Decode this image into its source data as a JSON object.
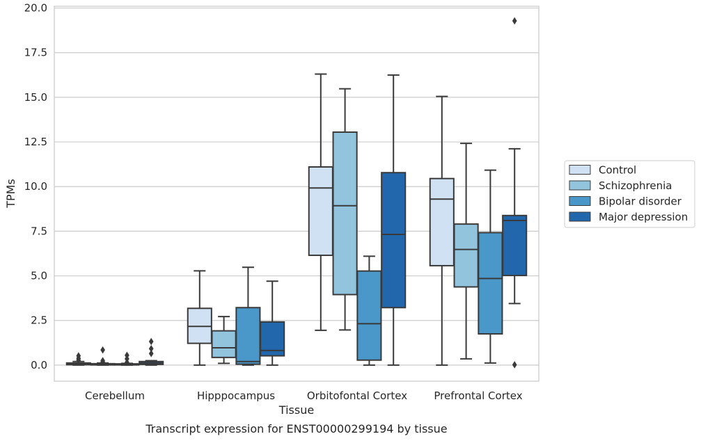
{
  "chart_data": {
    "type": "box",
    "title": "",
    "caption": "Transcript expression for ENST00000299194 by tissue",
    "xlabel": "Tissue",
    "ylabel": "TPMs",
    "ylim": [
      -0.9,
      20.1
    ],
    "yticks": [
      "0.0",
      "2.5",
      "5.0",
      "7.5",
      "10.0",
      "12.5",
      "15.0",
      "17.5",
      "20.0"
    ],
    "ytick_values": [
      0,
      2.5,
      5,
      7.5,
      10,
      12.5,
      15,
      17.5,
      20
    ],
    "grid": true,
    "legend_position": "right",
    "categories": [
      "Cerebellum",
      "Hipppocampus",
      "Orbitofontal Cortex",
      "Prefrontal Cortex"
    ],
    "series": [
      {
        "name": "Control",
        "color": "#cfe1f2",
        "boxes": [
          {
            "whislo": 0.0,
            "q1": 0.02,
            "med": 0.06,
            "q3": 0.12,
            "whishi": 0.2,
            "fliers": [
              0.28,
              0.38,
              0.52
            ]
          },
          {
            "whislo": 0.0,
            "q1": 1.22,
            "med": 2.17,
            "q3": 3.18,
            "whishi": 5.28,
            "fliers": []
          },
          {
            "whislo": 1.95,
            "q1": 6.15,
            "med": 9.92,
            "q3": 11.1,
            "whishi": 16.3,
            "fliers": []
          },
          {
            "whislo": 0.0,
            "q1": 5.57,
            "med": 9.3,
            "q3": 10.45,
            "whishi": 15.05,
            "fliers": []
          }
        ]
      },
      {
        "name": "Schizophrenia",
        "color": "#93c4de",
        "boxes": [
          {
            "whislo": 0.0,
            "q1": 0.01,
            "med": 0.04,
            "q3": 0.08,
            "whishi": 0.12,
            "fliers": [
              0.18,
              0.25,
              0.85
            ]
          },
          {
            "whislo": 0.1,
            "q1": 0.43,
            "med": 0.97,
            "q3": 1.92,
            "whishi": 2.72,
            "fliers": []
          },
          {
            "whislo": 1.97,
            "q1": 3.95,
            "med": 8.93,
            "q3": 13.05,
            "whishi": 15.48,
            "fliers": []
          },
          {
            "whislo": 0.35,
            "q1": 4.38,
            "med": 6.48,
            "q3": 7.9,
            "whishi": 12.42,
            "fliers": []
          }
        ]
      },
      {
        "name": "Bipolar disorder",
        "color": "#4a98c9",
        "boxes": [
          {
            "whislo": 0.0,
            "q1": 0.01,
            "med": 0.03,
            "q3": 0.07,
            "whishi": 0.1,
            "fliers": [
              0.15,
              0.35,
              0.55
            ]
          },
          {
            "whislo": 0.0,
            "q1": 0.05,
            "med": 0.2,
            "q3": 3.22,
            "whishi": 5.48,
            "fliers": []
          },
          {
            "whislo": 0.0,
            "q1": 0.28,
            "med": 2.32,
            "q3": 5.27,
            "whishi": 6.1,
            "fliers": []
          },
          {
            "whislo": 0.12,
            "q1": 1.75,
            "med": 4.85,
            "q3": 7.42,
            "whishi": 10.92,
            "fliers": []
          }
        ]
      },
      {
        "name": "Major depression",
        "color": "#2266ac",
        "boxes": [
          {
            "whislo": 0.0,
            "q1": 0.04,
            "med": 0.12,
            "q3": 0.2,
            "whishi": 0.25,
            "fliers": [
              0.65,
              0.92,
              1.32
            ]
          },
          {
            "whislo": 0.0,
            "q1": 0.52,
            "med": 0.82,
            "q3": 2.42,
            "whishi": 4.7,
            "fliers": []
          },
          {
            "whislo": 0.0,
            "q1": 3.22,
            "med": 7.32,
            "q3": 10.78,
            "whishi": 16.25,
            "fliers": []
          },
          {
            "whislo": 3.45,
            "q1": 5.02,
            "med": 8.1,
            "q3": 8.38,
            "whishi": 12.12,
            "fliers": [
              0.02,
              19.28
            ]
          }
        ]
      }
    ]
  }
}
